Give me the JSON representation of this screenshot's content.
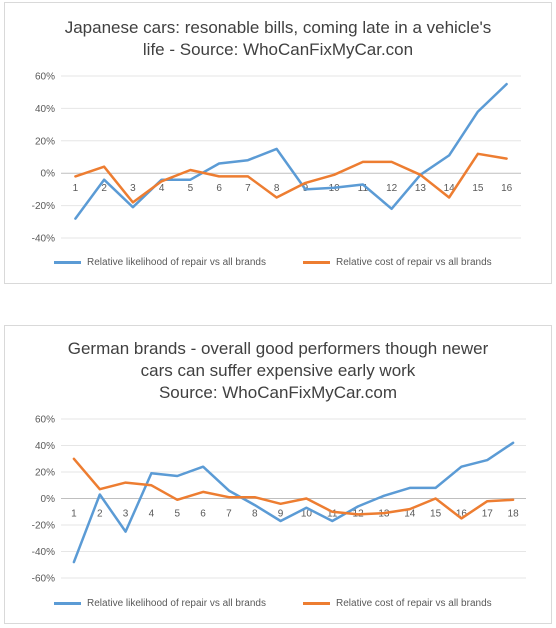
{
  "charts": [
    {
      "title_lines": [
        "Japanese cars: resonable bills, coming late in a vehicle's",
        "life - Source: WhoCanFixMyCar.con"
      ],
      "legend": [
        "Relative likelihood of repair vs all brands",
        "Relative cost of repair vs all brands"
      ]
    },
    {
      "title_lines": [
        "German brands - overall good performers though newer",
        "cars can suffer expensive early work",
        "Source: WhoCanFixMyCar.com"
      ],
      "legend": [
        "Relative likelihood of repair vs all brands",
        "Relative cost of repair vs all brands"
      ]
    }
  ],
  "chart_data": [
    {
      "type": "line",
      "title": "Japanese cars: resonable bills, coming late in a vehicle's life - Source: WhoCanFixMyCar.con",
      "categories": [
        "1",
        "2",
        "3",
        "4",
        "5",
        "6",
        "7",
        "8",
        "9",
        "10",
        "11",
        "12",
        "13",
        "14",
        "15",
        "16"
      ],
      "yticks": [
        "60%",
        "40%",
        "20%",
        "0%",
        "-20%",
        "-40%"
      ],
      "ylim": [
        -40,
        60
      ],
      "y_unit": "percent",
      "grid": true,
      "legend_position": "bottom",
      "series": [
        {
          "name": "Relative likelihood of repair vs all brands",
          "color": "#5b9bd5",
          "values": [
            -28,
            -4,
            -21,
            -4,
            -4,
            6,
            8,
            15,
            -10,
            -9,
            -7,
            -22,
            -1,
            11,
            38,
            55
          ]
        },
        {
          "name": "Relative cost of repair vs all brands",
          "color": "#ed7d31",
          "values": [
            -2,
            4,
            -18,
            -5,
            2,
            -2,
            -2,
            -15,
            -6,
            -1,
            7,
            7,
            -1,
            -15,
            12,
            9
          ]
        }
      ]
    },
    {
      "type": "line",
      "title": "German brands - overall good performers though newer cars can suffer expensive early work Source: WhoCanFixMyCar.com",
      "categories": [
        "1",
        "2",
        "3",
        "4",
        "5",
        "6",
        "7",
        "8",
        "9",
        "10",
        "11",
        "12",
        "13",
        "14",
        "15",
        "16",
        "17",
        "18"
      ],
      "yticks": [
        "60%",
        "40%",
        "20%",
        "0%",
        "-20%",
        "-40%",
        "-60%"
      ],
      "ylim": [
        -60,
        60
      ],
      "y_unit": "percent",
      "grid": true,
      "legend_position": "bottom",
      "series": [
        {
          "name": "Relative likelihood of repair vs all brands",
          "color": "#5b9bd5",
          "values": [
            -48,
            3,
            -25,
            19,
            17,
            24,
            6,
            -5,
            -17,
            -7,
            -17,
            -6,
            2,
            8,
            8,
            24,
            29,
            42
          ]
        },
        {
          "name": "Relative cost of repair vs all brands",
          "color": "#ed7d31",
          "values": [
            30,
            7,
            12,
            10,
            -1,
            5,
            1,
            1,
            -4,
            0,
            -10,
            -12,
            -11,
            -8,
            0,
            -15,
            -2,
            -1
          ]
        }
      ]
    }
  ]
}
